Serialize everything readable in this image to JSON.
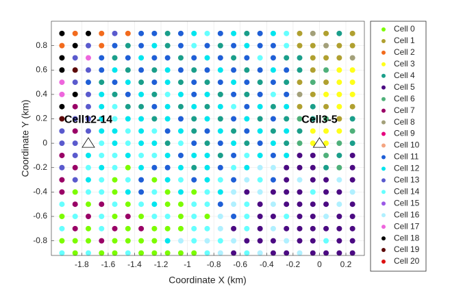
{
  "chart_data": {
    "type": "cell-map",
    "xlabel": "Coordinate X (km)",
    "ylabel": "Coordinate Y (km)",
    "xlim": [
      -2.03,
      0.34
    ],
    "ylim": [
      -0.92,
      1.0
    ],
    "xticks": [
      -1.8,
      -1.6,
      -1.4,
      -1.2,
      -1,
      -0.8,
      -0.6,
      -0.4,
      -0.2,
      0,
      0.2
    ],
    "yticks": [
      -0.8,
      -0.6,
      -0.4,
      -0.2,
      0,
      0.2,
      0.4,
      0.6,
      0.8
    ],
    "grid": true,
    "legend": "outside-right",
    "series": [
      {
        "name": "Cell 0",
        "color": "#7cfc00"
      },
      {
        "name": "Cell 1",
        "color": "#b0a030"
      },
      {
        "name": "Cell 2",
        "color": "#f26b1d"
      },
      {
        "name": "Cell 3",
        "color": "#ffff1a"
      },
      {
        "name": "Cell 4",
        "color": "#1a9e8a"
      },
      {
        "name": "Cell 5",
        "color": "#4b0a82"
      },
      {
        "name": "Cell 6",
        "color": "#4fb07a"
      },
      {
        "name": "Cell 7",
        "color": "#990066"
      },
      {
        "name": "Cell 8",
        "color": "#a3a07a"
      },
      {
        "name": "Cell 9",
        "color": "#e6007e"
      },
      {
        "name": "Cell 10",
        "color": "#f4a582"
      },
      {
        "name": "Cell 11",
        "color": "#1f5fd6"
      },
      {
        "name": "Cell 12",
        "color": "#00e5ee"
      },
      {
        "name": "Cell 13",
        "color": "#5a5acd"
      },
      {
        "name": "Cell 14",
        "color": "#66ffff"
      },
      {
        "name": "Cell 15",
        "color": "#9b59e6"
      },
      {
        "name": "Cell 16",
        "color": "#b0f0ff"
      },
      {
        "name": "Cell 17",
        "color": "#ee66dd"
      },
      {
        "name": "Cell 18",
        "color": "#000000"
      },
      {
        "name": "Cell 19",
        "color": "#5c0a0a"
      },
      {
        "name": "Cell 20",
        "color": "#dd1111"
      }
    ],
    "x": [
      -1.95,
      -1.85,
      -1.75,
      -1.65,
      -1.55,
      -1.45,
      -1.35,
      -1.25,
      -1.15,
      -1.05,
      -0.95,
      -0.85,
      -0.75,
      -0.65,
      -0.55,
      -0.45,
      -0.35,
      -0.25,
      -0.15,
      -0.05,
      0.05,
      0.15,
      0.25
    ],
    "y": [
      0.9,
      0.8,
      0.7,
      0.6,
      0.5,
      0.4,
      0.3,
      0.2,
      0.1,
      0,
      -0.1,
      -0.2,
      -0.3,
      -0.4,
      -0.5,
      -0.6,
      -0.7,
      -0.8,
      -0.9
    ],
    "cells": [
      [
        18,
        2,
        18,
        2,
        13,
        2,
        11,
        11,
        4,
        11,
        12,
        14,
        11,
        12,
        4,
        11,
        12,
        14,
        1,
        8,
        1,
        4,
        1
      ],
      [
        2,
        18,
        13,
        2,
        11,
        4,
        11,
        12,
        4,
        11,
        14,
        11,
        4,
        11,
        12,
        11,
        11,
        14,
        1,
        1,
        8,
        1,
        1
      ],
      [
        18,
        13,
        17,
        11,
        4,
        11,
        12,
        11,
        11,
        4,
        11,
        12,
        11,
        4,
        11,
        14,
        11,
        4,
        4,
        1,
        1,
        1,
        8
      ],
      [
        18,
        19,
        13,
        11,
        12,
        4,
        11,
        4,
        12,
        11,
        4,
        11,
        12,
        11,
        4,
        11,
        12,
        11,
        4,
        1,
        6,
        3,
        3
      ],
      [
        17,
        13,
        11,
        4,
        11,
        12,
        4,
        11,
        12,
        4,
        11,
        4,
        11,
        12,
        11,
        4,
        11,
        4,
        1,
        6,
        1,
        3,
        3
      ],
      [
        17,
        18,
        13,
        12,
        4,
        11,
        12,
        4,
        14,
        12,
        11,
        12,
        4,
        11,
        4,
        11,
        14,
        11,
        8,
        1,
        3,
        3,
        3
      ],
      [
        18,
        7,
        13,
        12,
        14,
        4,
        4,
        11,
        12,
        4,
        12,
        4,
        12,
        14,
        11,
        12,
        4,
        12,
        1,
        4,
        1,
        3,
        1
      ],
      [
        19,
        13,
        13,
        12,
        14,
        12,
        12,
        4,
        12,
        11,
        4,
        12,
        4,
        11,
        12,
        4,
        11,
        4,
        6,
        4,
        6,
        1,
        4
      ],
      [
        13,
        7,
        13,
        12,
        12,
        14,
        12,
        14,
        11,
        12,
        4,
        11,
        12,
        4,
        11,
        12,
        4,
        12,
        4,
        3,
        3,
        3,
        6
      ],
      [
        13,
        13,
        12,
        14,
        12,
        14,
        12,
        12,
        4,
        14,
        11,
        4,
        11,
        12,
        4,
        11,
        12,
        4,
        6,
        3,
        3,
        6,
        4
      ],
      [
        7,
        13,
        12,
        14,
        14,
        12,
        14,
        14,
        12,
        11,
        12,
        12,
        4,
        11,
        14,
        12,
        11,
        12,
        5,
        5,
        6,
        4,
        5
      ],
      [
        13,
        7,
        14,
        12,
        14,
        0,
        12,
        11,
        11,
        12,
        4,
        12,
        11,
        14,
        12,
        16,
        16,
        5,
        5,
        5,
        4,
        6,
        5
      ],
      [
        7,
        13,
        12,
        14,
        0,
        14,
        11,
        0,
        12,
        14,
        11,
        12,
        14,
        11,
        16,
        14,
        11,
        5,
        16,
        5,
        5,
        16,
        5
      ],
      [
        7,
        0,
        14,
        14,
        0,
        12,
        11,
        14,
        0,
        12,
        0,
        14,
        12,
        16,
        5,
        16,
        5,
        5,
        5,
        14,
        5,
        5,
        16
      ],
      [
        14,
        7,
        0,
        7,
        14,
        0,
        14,
        12,
        0,
        0,
        14,
        14,
        11,
        16,
        14,
        5,
        16,
        5,
        5,
        5,
        5,
        16,
        5
      ],
      [
        0,
        14,
        7,
        14,
        0,
        7,
        0,
        14,
        14,
        0,
        14,
        0,
        16,
        11,
        14,
        5,
        5,
        14,
        5,
        5,
        16,
        5,
        5
      ],
      [
        14,
        7,
        0,
        14,
        7,
        0,
        7,
        0,
        0,
        0,
        14,
        14,
        16,
        5,
        14,
        5,
        16,
        5,
        5,
        5,
        5,
        5,
        5
      ],
      [
        0,
        0,
        0,
        7,
        0,
        0,
        0,
        0,
        12,
        16,
        14,
        16,
        14,
        16,
        5,
        5,
        5,
        16,
        5,
        5,
        14,
        5,
        5
      ],
      [
        14,
        0,
        14,
        0,
        0,
        14,
        0,
        0,
        0,
        0,
        0,
        14,
        16,
        5,
        14,
        16,
        5,
        5,
        16,
        5,
        5,
        5,
        5
      ]
    ],
    "annotations": [
      {
        "text": "Cell12-14",
        "x": -1.75,
        "y": 0
      },
      {
        "text": "Cell3-5",
        "x": 0,
        "y": 0
      }
    ]
  }
}
